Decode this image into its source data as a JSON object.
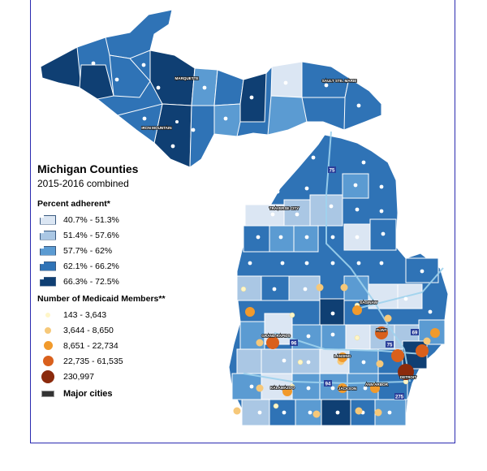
{
  "legend": {
    "title": "Michigan Counties",
    "subtitle": "2015-2016 combined",
    "adherence_heading": "Percent adherent*",
    "adherence_classes": [
      {
        "label": "40.7% - 51.3%",
        "color": "#dbe6f3"
      },
      {
        "label": "51.4% - 57.6%",
        "color": "#aac7e4"
      },
      {
        "label": "57.7% - 62%",
        "color": "#5b9bd2"
      },
      {
        "label": "62.1% - 66.2%",
        "color": "#2f73b6"
      },
      {
        "label": "66.3% - 72.5%",
        "color": "#0f3f73"
      }
    ],
    "members_heading": "Number of Medicaid Members**",
    "member_classes": [
      {
        "label": "143 - 3,643",
        "color": "#fff6c8"
      },
      {
        "label": "3,644 - 8,650",
        "color": "#f6c879"
      },
      {
        "label": "8,651 - 22,734",
        "color": "#f19a2c"
      },
      {
        "label": "22,735 - 61,535",
        "color": "#d9601c"
      },
      {
        "label": "230,997",
        "color": "#8b2a0c"
      }
    ],
    "cities_label": "Major cities"
  },
  "cities": [
    "MARQUETTE",
    "SAULT STE. MARIE",
    "IRON MOUNTAIN",
    "TRAVERSE CITY",
    "SAGINAW",
    "GRAND RAPIDS",
    "FLINT",
    "LANSING",
    "KALAMAZOO",
    "JACKSON",
    "ANN ARBOR",
    "DETROIT"
  ],
  "interstates": [
    "75",
    "96",
    "69",
    "94",
    "75",
    "275"
  ]
}
